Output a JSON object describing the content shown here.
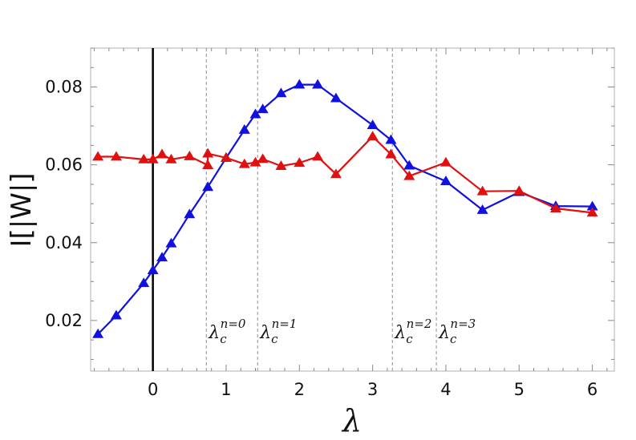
{
  "chart_data": {
    "type": "line",
    "title": "",
    "xlabel": "λ",
    "ylabel": "I[|W|]",
    "xlim": [
      -0.85,
      6.3
    ],
    "ylim": [
      0.007,
      0.09
    ],
    "grid": false,
    "x_ticks": [
      0,
      1,
      2,
      3,
      4,
      5,
      6
    ],
    "y_ticks": [
      0.02,
      0.04,
      0.06,
      0.08
    ],
    "x_tick_labels": [
      "0",
      "1",
      "2",
      "3",
      "4",
      "5",
      "6"
    ],
    "y_tick_labels": [
      "0.02",
      "0.04",
      "0.06",
      "0.08"
    ],
    "reference_line_x": 0,
    "critical_lines": [
      {
        "x": 0.73,
        "symbol": "λ",
        "sub": "c",
        "sup": "n=0"
      },
      {
        "x": 1.43,
        "symbol": "λ",
        "sub": "c",
        "sup": "n=1"
      },
      {
        "x": 3.27,
        "symbol": "λ",
        "sub": "c",
        "sup": "n=2"
      },
      {
        "x": 3.87,
        "symbol": "λ",
        "sub": "c",
        "sup": "n=3"
      }
    ],
    "series": [
      {
        "color": "#1010e0",
        "x": [
          -0.75,
          -0.5,
          -0.125,
          0,
          0.125,
          0.25,
          0.5,
          0.75,
          1.0,
          1.25,
          1.4,
          1.5,
          1.75,
          2.0,
          2.25,
          2.5,
          3.0,
          3.25,
          3.5,
          4.0,
          4.5,
          5.0,
          5.5,
          6.0
        ],
        "y": [
          0.0165,
          0.0213,
          0.0296,
          0.0329,
          0.0362,
          0.0398,
          0.0473,
          0.0543,
          0.0618,
          0.069,
          0.073,
          0.0743,
          0.0784,
          0.0806,
          0.0806,
          0.0771,
          0.0702,
          0.0664,
          0.0598,
          0.0558,
          0.0484,
          0.053,
          0.0494,
          0.0493
        ]
      },
      {
        "color": "#e01010",
        "x": [
          -0.75,
          -0.5,
          -0.125,
          0,
          0.125,
          0.25,
          0.5,
          0.75,
          0.75,
          1.0,
          1.25,
          1.4,
          1.5,
          1.75,
          2.0,
          2.25,
          2.5,
          3.0,
          3.25,
          3.5,
          4.0,
          4.5,
          5.0,
          5.5,
          6.0
        ],
        "y": [
          0.0621,
          0.0621,
          0.0614,
          0.0614,
          0.0627,
          0.0614,
          0.0622,
          0.0599,
          0.0629,
          0.0618,
          0.0602,
          0.0606,
          0.0615,
          0.0597,
          0.0605,
          0.0621,
          0.0576,
          0.0673,
          0.0627,
          0.0571,
          0.0606,
          0.0532,
          0.0533,
          0.0488,
          0.0477
        ]
      }
    ]
  }
}
